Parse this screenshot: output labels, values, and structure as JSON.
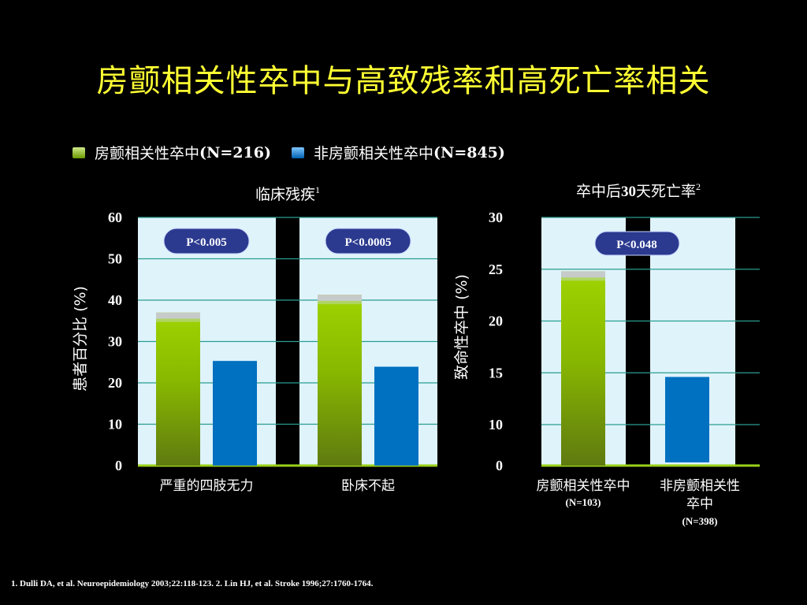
{
  "title": "房颤相关性卒中与高致残率和高死亡率相关",
  "legend": [
    {
      "label": "房颤相关性卒中",
      "n": "(N=216)",
      "color": "#88c400"
    },
    {
      "label": "非房颤相关性卒中",
      "n": "(N=845)",
      "color": "#0070c0"
    }
  ],
  "footnote": "1. Dulli DA, et al. Neuroepidemiology 2003;22:118-123. 2. Lin HJ, et al. Stroke 1996;27:1760-1764.",
  "colors": {
    "af": "#88c400",
    "non_af": "#0070c0",
    "panel": "#dff3fb",
    "grid": "#2a9d8f",
    "pbox": "#2b3a8f"
  },
  "chart_data": [
    {
      "type": "bar",
      "title": "临床残疾",
      "title_sup": "1",
      "ylabel": "患者百分比 (%)",
      "ylim": [
        0,
        60
      ],
      "yticks": [
        "0",
        "10",
        "20",
        "30",
        "40",
        "50",
        "60"
      ],
      "grid": true,
      "categories": [
        "严重的四肢无力",
        "卧床不起"
      ],
      "series": [
        {
          "name": "房颤相关性卒中",
          "values": [
            37,
            41.3
          ]
        },
        {
          "name": "非房颤相关性卒中",
          "values": [
            25.3,
            23.9
          ]
        }
      ],
      "p_values": [
        "P<0.005",
        "P<0.0005"
      ]
    },
    {
      "type": "bar",
      "title": "卒中后30天死亡率",
      "title_sup": "2",
      "ylabel": "致命性卒中 (%)",
      "ylim": [
        0,
        30
      ],
      "yticks": [
        "0",
        "10",
        "15",
        "20",
        "25",
        "30"
      ],
      "grid": true,
      "categories": [
        "房颤相关性卒中",
        "非房颤相关性卒中"
      ],
      "category_n": [
        "(N=103)",
        "(N=398)"
      ],
      "series": [
        {
          "name": "",
          "values": [
            24.8,
            14.6
          ]
        }
      ],
      "p_values": [
        "P<0.048"
      ]
    }
  ]
}
